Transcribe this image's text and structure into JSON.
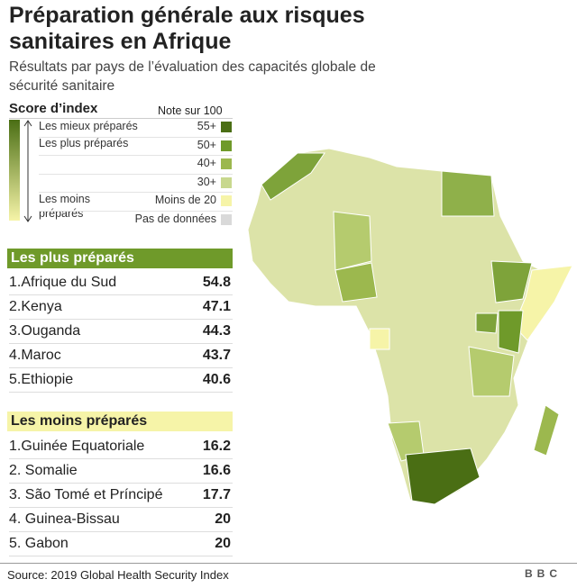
{
  "header": {
    "title": "Préparation générale aux risques sanitaires en Afrique",
    "subtitle": "Résultats par pays de l’évaluation des capacités globale de sécurité sanitaire"
  },
  "legend": {
    "title": "Score d’index",
    "note": "Note sur 100",
    "side_labels": [
      "Les mieux préparés",
      "Les plus préparés",
      "Les moins préparés"
    ],
    "items": [
      {
        "label": "55+",
        "color": "#4a6e14"
      },
      {
        "label": "50+",
        "color": "#6f9a2a"
      },
      {
        "label": "40+",
        "color": "#9cb84e"
      },
      {
        "label": "30+",
        "color": "#c8d88e"
      },
      {
        "label": "Moins de 20",
        "color": "#f6f4a8"
      },
      {
        "label": "Pas de données",
        "color": "#d9d9d9"
      }
    ]
  },
  "top": {
    "title": "Les plus préparés",
    "rows": [
      [
        "1.Afrique du Sud",
        54.8
      ],
      [
        "2.Kenya",
        47.1
      ],
      [
        "3.Ouganda",
        44.3
      ],
      [
        "4.Maroc",
        43.7
      ],
      [
        "5.Ethiopie",
        40.6
      ]
    ]
  },
  "bottom": {
    "title": "Les moins préparés",
    "rows": [
      [
        "1.Guinée Equatoriale",
        16.2
      ],
      [
        "2. Somalie",
        16.6
      ],
      [
        "3. São Tomé et Príncipé",
        17.7
      ],
      [
        "4. Guinea-Bissau",
        20
      ],
      [
        "5. Gabon",
        20
      ]
    ]
  },
  "footer": {
    "source": "Source: 2019 Global Health Security Index",
    "logo": "BBC"
  }
}
